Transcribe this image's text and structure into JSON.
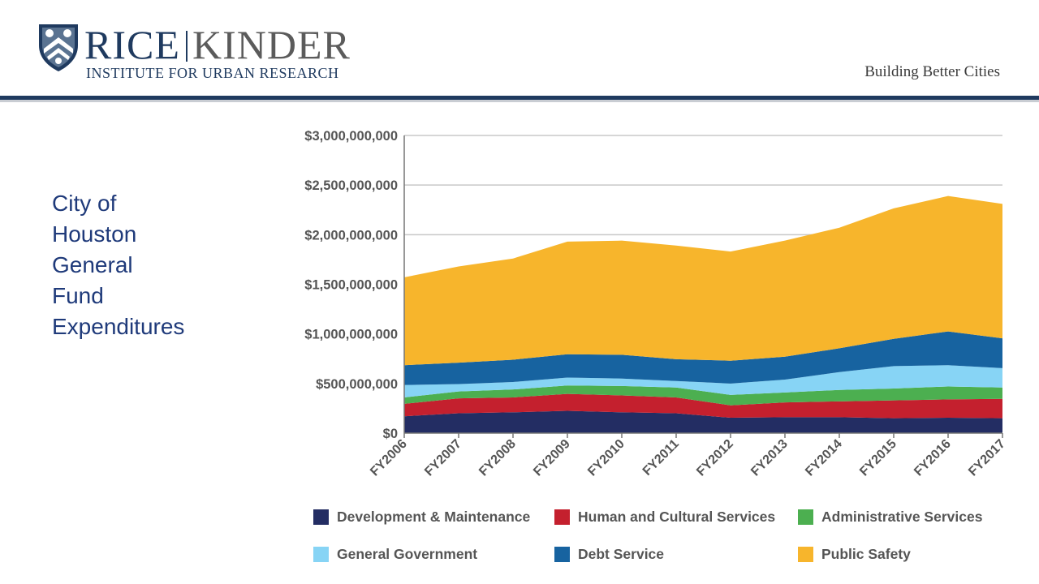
{
  "header": {
    "logo_rice": "RICE",
    "logo_kinder": "KINDER",
    "logo_institute": "INSTITUTE FOR URBAN RESEARCH",
    "tagline": "Building Better Cities"
  },
  "side_title": "City of\nHouston\nGeneral\nFund\nExpenditures",
  "chart_data": {
    "type": "area",
    "stacked": true,
    "title": "",
    "xlabel": "",
    "ylabel": "",
    "categories": [
      "FY2006",
      "FY2007",
      "FY2008",
      "FY2009",
      "FY2010",
      "FY2011",
      "FY2012",
      "FY2013",
      "FY2014",
      "FY2015",
      "FY2016",
      "FY2017"
    ],
    "ylim": [
      0,
      3000000000
    ],
    "y_ticks": [
      0,
      500000000,
      1000000000,
      1500000000,
      2000000000,
      2500000000,
      3000000000
    ],
    "y_tick_labels": [
      "$0",
      "$500,000,000",
      "$1,000,000,000",
      "$1,500,000,000",
      "$2,000,000,000",
      "$2,500,000,000",
      "$3,000,000,000"
    ],
    "grid": true,
    "legend_position": "bottom",
    "series": [
      {
        "name": "Development & Maintenance",
        "color": "#232d63",
        "values": [
          170000000,
          200000000,
          210000000,
          225000000,
          210000000,
          200000000,
          155000000,
          160000000,
          160000000,
          150000000,
          155000000,
          150000000
        ]
      },
      {
        "name": "Human and Cultural Services",
        "color": "#c4202e",
        "values": [
          125000000,
          150000000,
          150000000,
          170000000,
          170000000,
          160000000,
          125000000,
          150000000,
          160000000,
          180000000,
          185000000,
          195000000
        ]
      },
      {
        "name": "Administrative Services",
        "color": "#4caf50",
        "values": [
          65000000,
          70000000,
          80000000,
          85000000,
          95000000,
          100000000,
          105000000,
          100000000,
          115000000,
          120000000,
          130000000,
          115000000
        ]
      },
      {
        "name": "General Government",
        "color": "#87d4f5",
        "values": [
          125000000,
          75000000,
          75000000,
          80000000,
          75000000,
          65000000,
          115000000,
          130000000,
          180000000,
          225000000,
          215000000,
          195000000
        ]
      },
      {
        "name": "Debt Service",
        "color": "#1763a0",
        "values": [
          200000000,
          215000000,
          225000000,
          235000000,
          240000000,
          220000000,
          230000000,
          230000000,
          240000000,
          275000000,
          340000000,
          300000000
        ]
      },
      {
        "name": "Public Safety",
        "color": "#f7b52c",
        "values": [
          885000000,
          970000000,
          1020000000,
          1135000000,
          1150000000,
          1145000000,
          1100000000,
          1170000000,
          1215000000,
          1315000000,
          1365000000,
          1355000000
        ]
      }
    ]
  }
}
